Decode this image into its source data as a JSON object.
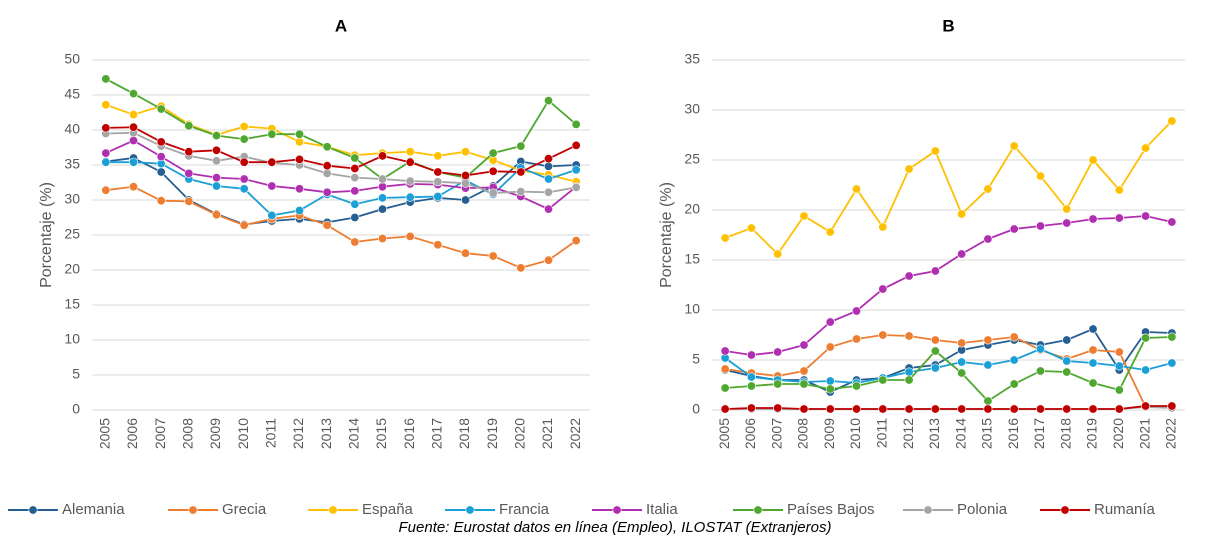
{
  "chart_data": [
    {
      "type": "line",
      "title": "A",
      "y_label": "Porcentaje (%)",
      "categories": [
        "2005",
        "2006",
        "2007",
        "2008",
        "2009",
        "2010",
        "2011",
        "2012",
        "2013",
        "2014",
        "2015",
        "2016",
        "2017",
        "2018",
        "2019",
        "2020",
        "2021",
        "2022"
      ],
      "ylim": [
        0,
        50
      ],
      "yticks": [
        0,
        5,
        10,
        15,
        20,
        25,
        30,
        35,
        40,
        45,
        50
      ],
      "grid": true,
      "series": [
        {
          "name": "Alemania",
          "color": "#255e91",
          "values": [
            35.5,
            36,
            34,
            30,
            28,
            26.5,
            27,
            27.3,
            26.8,
            27.5,
            28.7,
            29.7,
            30.3,
            30,
            32,
            35.5,
            34.8,
            35
          ]
        },
        {
          "name": "Grecia",
          "color": "#ed7d31",
          "values": [
            31.4,
            31.9,
            29.9,
            29.8,
            27.9,
            26.4,
            27.3,
            27.8,
            26.4,
            24,
            24.5,
            24.8,
            23.6,
            22.4,
            22,
            20.3,
            21.4,
            24.2
          ]
        },
        {
          "name": "España",
          "color": "#ffc000",
          "values": [
            43.6,
            42.2,
            43.4,
            40.8,
            39.3,
            40.5,
            40.2,
            38.3,
            37.6,
            36.4,
            36.7,
            36.9,
            36.3,
            36.9,
            35.7,
            34.2,
            33.6,
            32.6
          ]
        },
        {
          "name": "Francia",
          "color": "#1a9fd6",
          "values": [
            35.4,
            35.4,
            35.2,
            33,
            32,
            31.6,
            27.8,
            28.5,
            30.8,
            29.4,
            30.3,
            30.4,
            30.5,
            32.8,
            30.8,
            34.6,
            33,
            34.3
          ]
        },
        {
          "name": "Italia",
          "color": "#b02fb0",
          "values": [
            36.7,
            38.5,
            36.2,
            33.8,
            33.2,
            33,
            32,
            31.6,
            31.1,
            31.3,
            31.9,
            32.3,
            32.2,
            31.7,
            31.8,
            30.5,
            28.7,
            31.9
          ]
        },
        {
          "name": "Países Bajos",
          "color": "#4ea72e",
          "values": [
            47.3,
            45.2,
            43,
            40.6,
            39.2,
            38.7,
            39.4,
            39.4,
            37.6,
            36,
            33,
            35.5,
            34,
            33.2,
            36.7,
            37.7,
            44.2,
            40.8
          ]
        },
        {
          "name": "Polonia",
          "color": "#a5a5a5",
          "values": [
            39.5,
            39.6,
            37.7,
            36.3,
            35.6,
            36.2,
            35.3,
            35,
            33.8,
            33.2,
            33,
            32.7,
            32.6,
            32.4,
            31,
            31.2,
            31.1,
            31.8
          ]
        },
        {
          "name": "Rumanía",
          "color": "#c00000",
          "values": [
            40.3,
            40.4,
            38.3,
            36.9,
            37.1,
            35.4,
            35.4,
            35.8,
            34.9,
            34.5,
            36.3,
            35.4,
            34,
            33.5,
            34.1,
            34,
            35.9,
            37.8
          ]
        }
      ]
    },
    {
      "type": "line",
      "title": "B",
      "y_label": "Porcentaje (%)",
      "categories": [
        "2005",
        "2006",
        "2007",
        "2008",
        "2009",
        "2010",
        "2011",
        "2012",
        "2013",
        "2014",
        "2015",
        "2016",
        "2017",
        "2018",
        "2019",
        "2020",
        "2021",
        "2022"
      ],
      "ylim": [
        0,
        35
      ],
      "yticks": [
        0,
        5,
        10,
        15,
        20,
        25,
        30,
        35
      ],
      "grid": true,
      "series": [
        {
          "name": "Alemania",
          "color": "#255e91",
          "values": [
            4,
            3.4,
            3,
            3,
            1.8,
            3,
            3.2,
            4.2,
            4.5,
            6,
            6.5,
            7,
            6.5,
            7,
            8.1,
            4,
            7.8,
            7.7
          ]
        },
        {
          "name": "Grecia",
          "color": "#ed7d31",
          "values": [
            4.1,
            3.7,
            3.4,
            3.9,
            6.3,
            7.1,
            7.5,
            7.4,
            7,
            6.7,
            7,
            7.3,
            6,
            5.1,
            6,
            5.8,
            0.3,
            0.3
          ]
        },
        {
          "name": "España",
          "color": "#ffc000",
          "values": [
            17.2,
            18.2,
            15.6,
            19.4,
            17.8,
            22.1,
            18.3,
            24.1,
            25.9,
            19.6,
            22.1,
            26.4,
            23.4,
            20.1,
            25,
            22,
            26.2,
            28.9
          ]
        },
        {
          "name": "Francia",
          "color": "#1a9fd6",
          "values": [
            5.2,
            3.3,
            3,
            2.8,
            2.9,
            2.7,
            3.2,
            3.8,
            4.2,
            4.8,
            4.5,
            5,
            6.1,
            4.9,
            4.7,
            4.4,
            4,
            4.7
          ]
        },
        {
          "name": "Italia",
          "color": "#b02fb0",
          "values": [
            5.9,
            5.5,
            5.8,
            6.5,
            8.8,
            9.9,
            12.1,
            13.4,
            13.9,
            15.6,
            17.1,
            18.1,
            18.4,
            18.7,
            19.1,
            19.2,
            19.4,
            18.8
          ]
        },
        {
          "name": "Países Bajos",
          "color": "#4ea72e",
          "values": [
            2.2,
            2.4,
            2.6,
            2.6,
            2.1,
            2.4,
            3,
            3,
            5.9,
            3.7,
            0.9,
            2.6,
            3.9,
            3.8,
            2.7,
            2,
            7.2,
            7.3
          ]
        },
        {
          "name": "Polonia",
          "color": "#a5a5a5",
          "values": [
            0.1,
            0.1,
            0.1,
            0.1,
            0.1,
            0.1,
            0.1,
            0.1,
            0.1,
            0.1,
            0.1,
            0.1,
            0.1,
            0.1,
            0.1,
            0.1,
            0.3,
            0.2
          ]
        },
        {
          "name": "Rumanía",
          "color": "#c00000",
          "values": [
            0.1,
            0.2,
            0.2,
            0.1,
            0.1,
            0.1,
            0.1,
            0.1,
            0.1,
            0.1,
            0.1,
            0.1,
            0.1,
            0.1,
            0.1,
            0.1,
            0.4,
            0.4
          ]
        }
      ]
    }
  ],
  "source": "Fuente: Eurostat datos en línea (Empleo), ILOSTAT (Extranjeros)"
}
